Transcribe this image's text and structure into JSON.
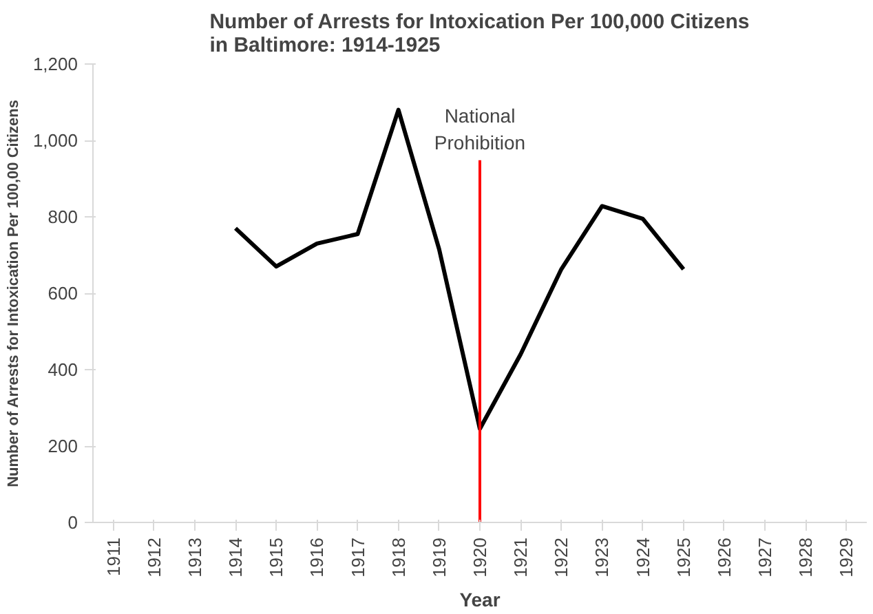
{
  "chart_data": {
    "type": "line",
    "title": "Number of Arrests for Intoxication Per 100,000 Citizens\nin Baltimore: 1914-1925",
    "xlabel": "Year",
    "ylabel": "Number of Arrests for Intoxication Per 100,00 Citizens",
    "categories": [
      "1911",
      "1912",
      "1913",
      "1914",
      "1915",
      "1916",
      "1917",
      "1918",
      "1919",
      "1920",
      "1921",
      "1922",
      "1923",
      "1924",
      "1925",
      "1926",
      "1927",
      "1928",
      "1929"
    ],
    "series": [
      {
        "color": "#000000",
        "values": [
          null,
          null,
          null,
          770,
          670,
          730,
          755,
          1080,
          715,
          245,
          440,
          663,
          828,
          795,
          663,
          null,
          null,
          null,
          null
        ]
      }
    ],
    "ylim": [
      0,
      1200
    ],
    "yticks": [
      {
        "value": 0,
        "label": "0"
      },
      {
        "value": 200,
        "label": "200"
      },
      {
        "value": 400,
        "label": "400"
      },
      {
        "value": 600,
        "label": "600"
      },
      {
        "value": 800,
        "label": "800"
      },
      {
        "value": 1000,
        "label": "1,000"
      },
      {
        "value": 1200,
        "label": "1,200"
      }
    ],
    "ref_lines": [
      {
        "axis": "x",
        "value": "1920",
        "label": "National Prohibition",
        "color": "#ff0000"
      }
    ],
    "grid": false
  }
}
